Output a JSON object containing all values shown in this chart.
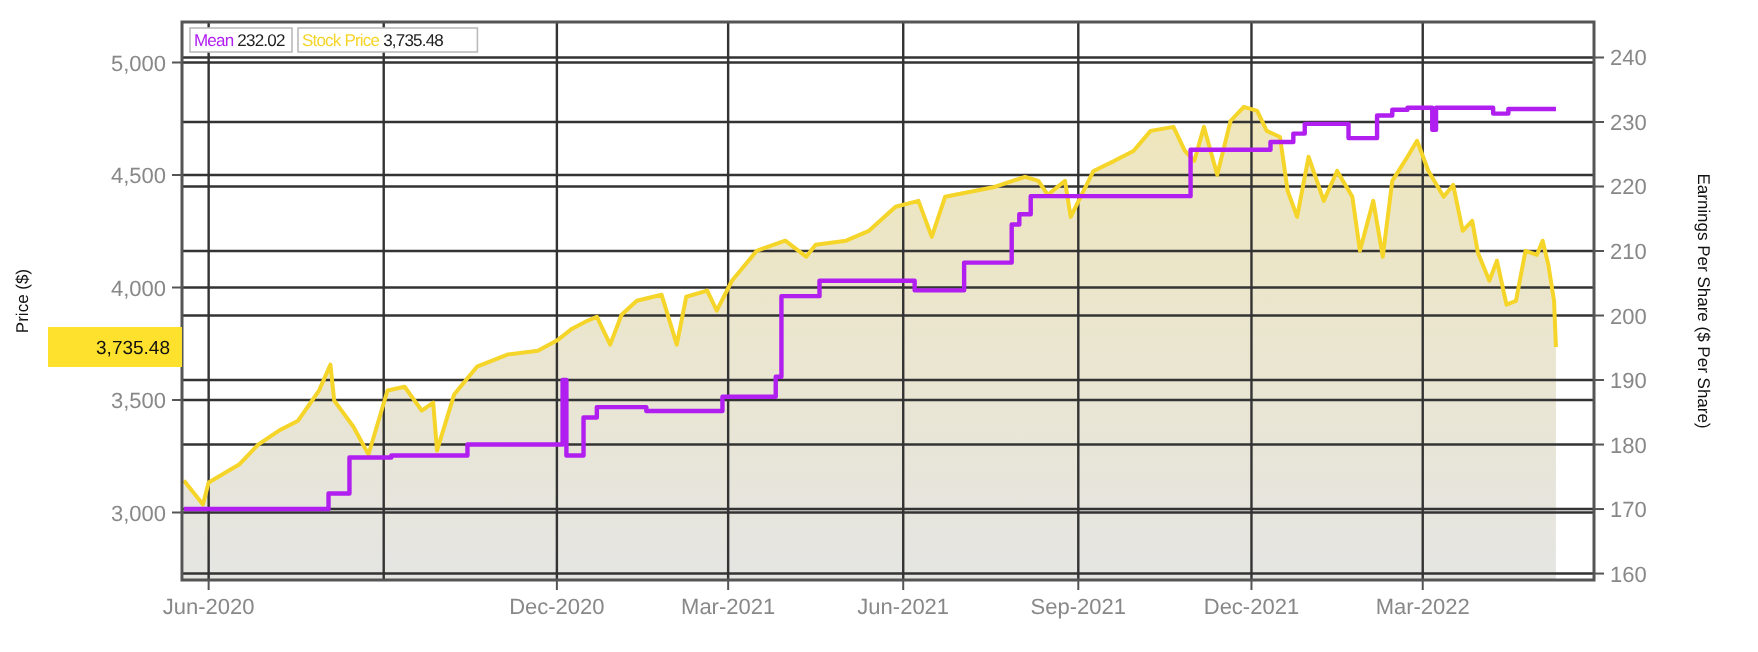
{
  "chart_data": {
    "type": "area",
    "xlabel": null,
    "ylabel": "Price ($)",
    "y2label": "Earnings Per Share ($ Per Share)",
    "xlim": [
      "2020-05-18",
      "2022-05-30"
    ],
    "xticks": [
      {
        "value": "2020-06-01",
        "label": "Jun-2020"
      },
      {
        "value": "2020-09-01",
        "label": null
      },
      {
        "value": "2020-12-01",
        "label": "Dec-2020"
      },
      {
        "value": "2021-03-01",
        "label": "Mar-2021"
      },
      {
        "value": "2021-06-01",
        "label": "Jun-2021"
      },
      {
        "value": "2021-09-01",
        "label": "Sep-2021"
      },
      {
        "value": "2021-12-01",
        "label": "Dec-2021"
      },
      {
        "value": "2022-03-01",
        "label": "Mar-2022"
      }
    ],
    "ylim": [
      2700,
      5180
    ],
    "yticks": [
      {
        "value": 3000,
        "label": "3,000"
      },
      {
        "value": 3500,
        "label": "3,500"
      },
      {
        "value": 4000,
        "label": "4,000"
      },
      {
        "value": 4500,
        "label": "4,500"
      },
      {
        "value": 5000,
        "label": "5,000"
      }
    ],
    "y2lim": [
      159,
      245.5
    ],
    "y2ticks": [
      160,
      170,
      180,
      190,
      200,
      210,
      220,
      230,
      240
    ],
    "grid": true,
    "legend": "top left",
    "annotations": [
      "232.02",
      "3,735.48",
      "3,735.48"
    ],
    "series": [
      {
        "name": "Mean",
        "type": "step",
        "axis": "y2",
        "color": "#b01ef0",
        "x": [
          "2020-05-19",
          "2020-08-03",
          "2020-08-14",
          "2020-09-05",
          "2020-10-15",
          "2020-12-04",
          "2020-12-06",
          "2020-12-15",
          "2020-12-22",
          "2021-01-17",
          "2021-02-26",
          "2021-03-26",
          "2021-03-29",
          "2021-04-18",
          "2021-06-07",
          "2021-07-03",
          "2021-07-28",
          "2021-08-01",
          "2021-08-07",
          "2021-10-30",
          "2021-12-11",
          "2021-12-23",
          "2021-12-29",
          "2022-01-21",
          "2022-02-05",
          "2022-02-13",
          "2022-02-21",
          "2022-03-06",
          "2022-03-08",
          "2022-04-07",
          "2022-04-15",
          "2022-05-10"
        ],
        "values": [
          170,
          172.4,
          178,
          178.3,
          180,
          190,
          178.3,
          184.2,
          185.8,
          185.2,
          187.4,
          190.5,
          203,
          205.4,
          203.9,
          208.2,
          214.1,
          215.7,
          218.5,
          225.7,
          226.9,
          228.2,
          229.7,
          227.5,
          231,
          231.9,
          232.2,
          228.8,
          232.2,
          231.3,
          232.02,
          232.02
        ]
      },
      {
        "name": "Stock Price",
        "color": "#f5d52a",
        "x": [
          "2020-05-19",
          "2020-05-29",
          "2020-06-01",
          "2020-06-17",
          "2020-06-27",
          "2020-07-08",
          "2020-07-18",
          "2020-07-29",
          "2020-08-04",
          "2020-08-06",
          "2020-08-16",
          "2020-08-24",
          "2020-09-03",
          "2020-09-12",
          "2020-09-21",
          "2020-09-27",
          "2020-09-29",
          "2020-10-08",
          "2020-10-20",
          "2020-11-05",
          "2020-11-21",
          "2020-12-01",
          "2020-12-09",
          "2020-12-17",
          "2020-12-22",
          "2020-12-29",
          "2021-01-04",
          "2021-01-12",
          "2021-01-25",
          "2021-02-02",
          "2021-02-07",
          "2021-02-18",
          "2021-02-23",
          "2021-03-03",
          "2021-03-16",
          "2021-03-31",
          "2021-04-11",
          "2021-04-16",
          "2021-05-02",
          "2021-05-14",
          "2021-05-28",
          "2021-06-09",
          "2021-06-16",
          "2021-06-23",
          "2021-07-09",
          "2021-07-19",
          "2021-08-04",
          "2021-08-11",
          "2021-08-16",
          "2021-08-25",
          "2021-08-28",
          "2021-09-09",
          "2021-09-20",
          "2021-09-30",
          "2021-10-09",
          "2021-10-21",
          "2021-10-27",
          "2021-11-01",
          "2021-11-06",
          "2021-11-13",
          "2021-11-20",
          "2021-11-27",
          "2021-12-04",
          "2021-12-09",
          "2021-12-16",
          "2021-12-20",
          "2021-12-25",
          "2021-12-31",
          "2022-01-08",
          "2022-01-15",
          "2022-01-23",
          "2022-01-27",
          "2022-02-03",
          "2022-02-08",
          "2022-02-13",
          "2022-02-21",
          "2022-02-26",
          "2022-03-04",
          "2022-03-12",
          "2022-03-17",
          "2022-03-22",
          "2022-03-27",
          "2022-03-30",
          "2022-04-05",
          "2022-04-09",
          "2022-04-14",
          "2022-04-19",
          "2022-04-24",
          "2022-04-30",
          "2022-05-03",
          "2022-05-06",
          "2022-05-09",
          "2022-05-10"
        ],
        "values": [
          3142,
          3036,
          3133,
          3213,
          3302,
          3364,
          3408,
          3542,
          3657,
          3497,
          3382,
          3258,
          3542,
          3559,
          3453,
          3488,
          3275,
          3524,
          3648,
          3702,
          3719,
          3764,
          3817,
          3852,
          3870,
          3746,
          3879,
          3941,
          3968,
          3746,
          3959,
          3986,
          3897,
          4030,
          4163,
          4208,
          4137,
          4190,
          4208,
          4252,
          4359,
          4385,
          4225,
          4403,
          4430,
          4447,
          4492,
          4474,
          4412,
          4474,
          4314,
          4518,
          4563,
          4607,
          4696,
          4714,
          4607,
          4563,
          4714,
          4501,
          4740,
          4803,
          4785,
          4696,
          4669,
          4430,
          4314,
          4581,
          4385,
          4518,
          4403,
          4163,
          4385,
          4137,
          4474,
          4581,
          4652,
          4518,
          4403,
          4456,
          4252,
          4296,
          4154,
          4030,
          4119,
          3924,
          3941,
          4163,
          4145,
          4208,
          4101,
          3941,
          3735.48
        ]
      }
    ]
  }
}
